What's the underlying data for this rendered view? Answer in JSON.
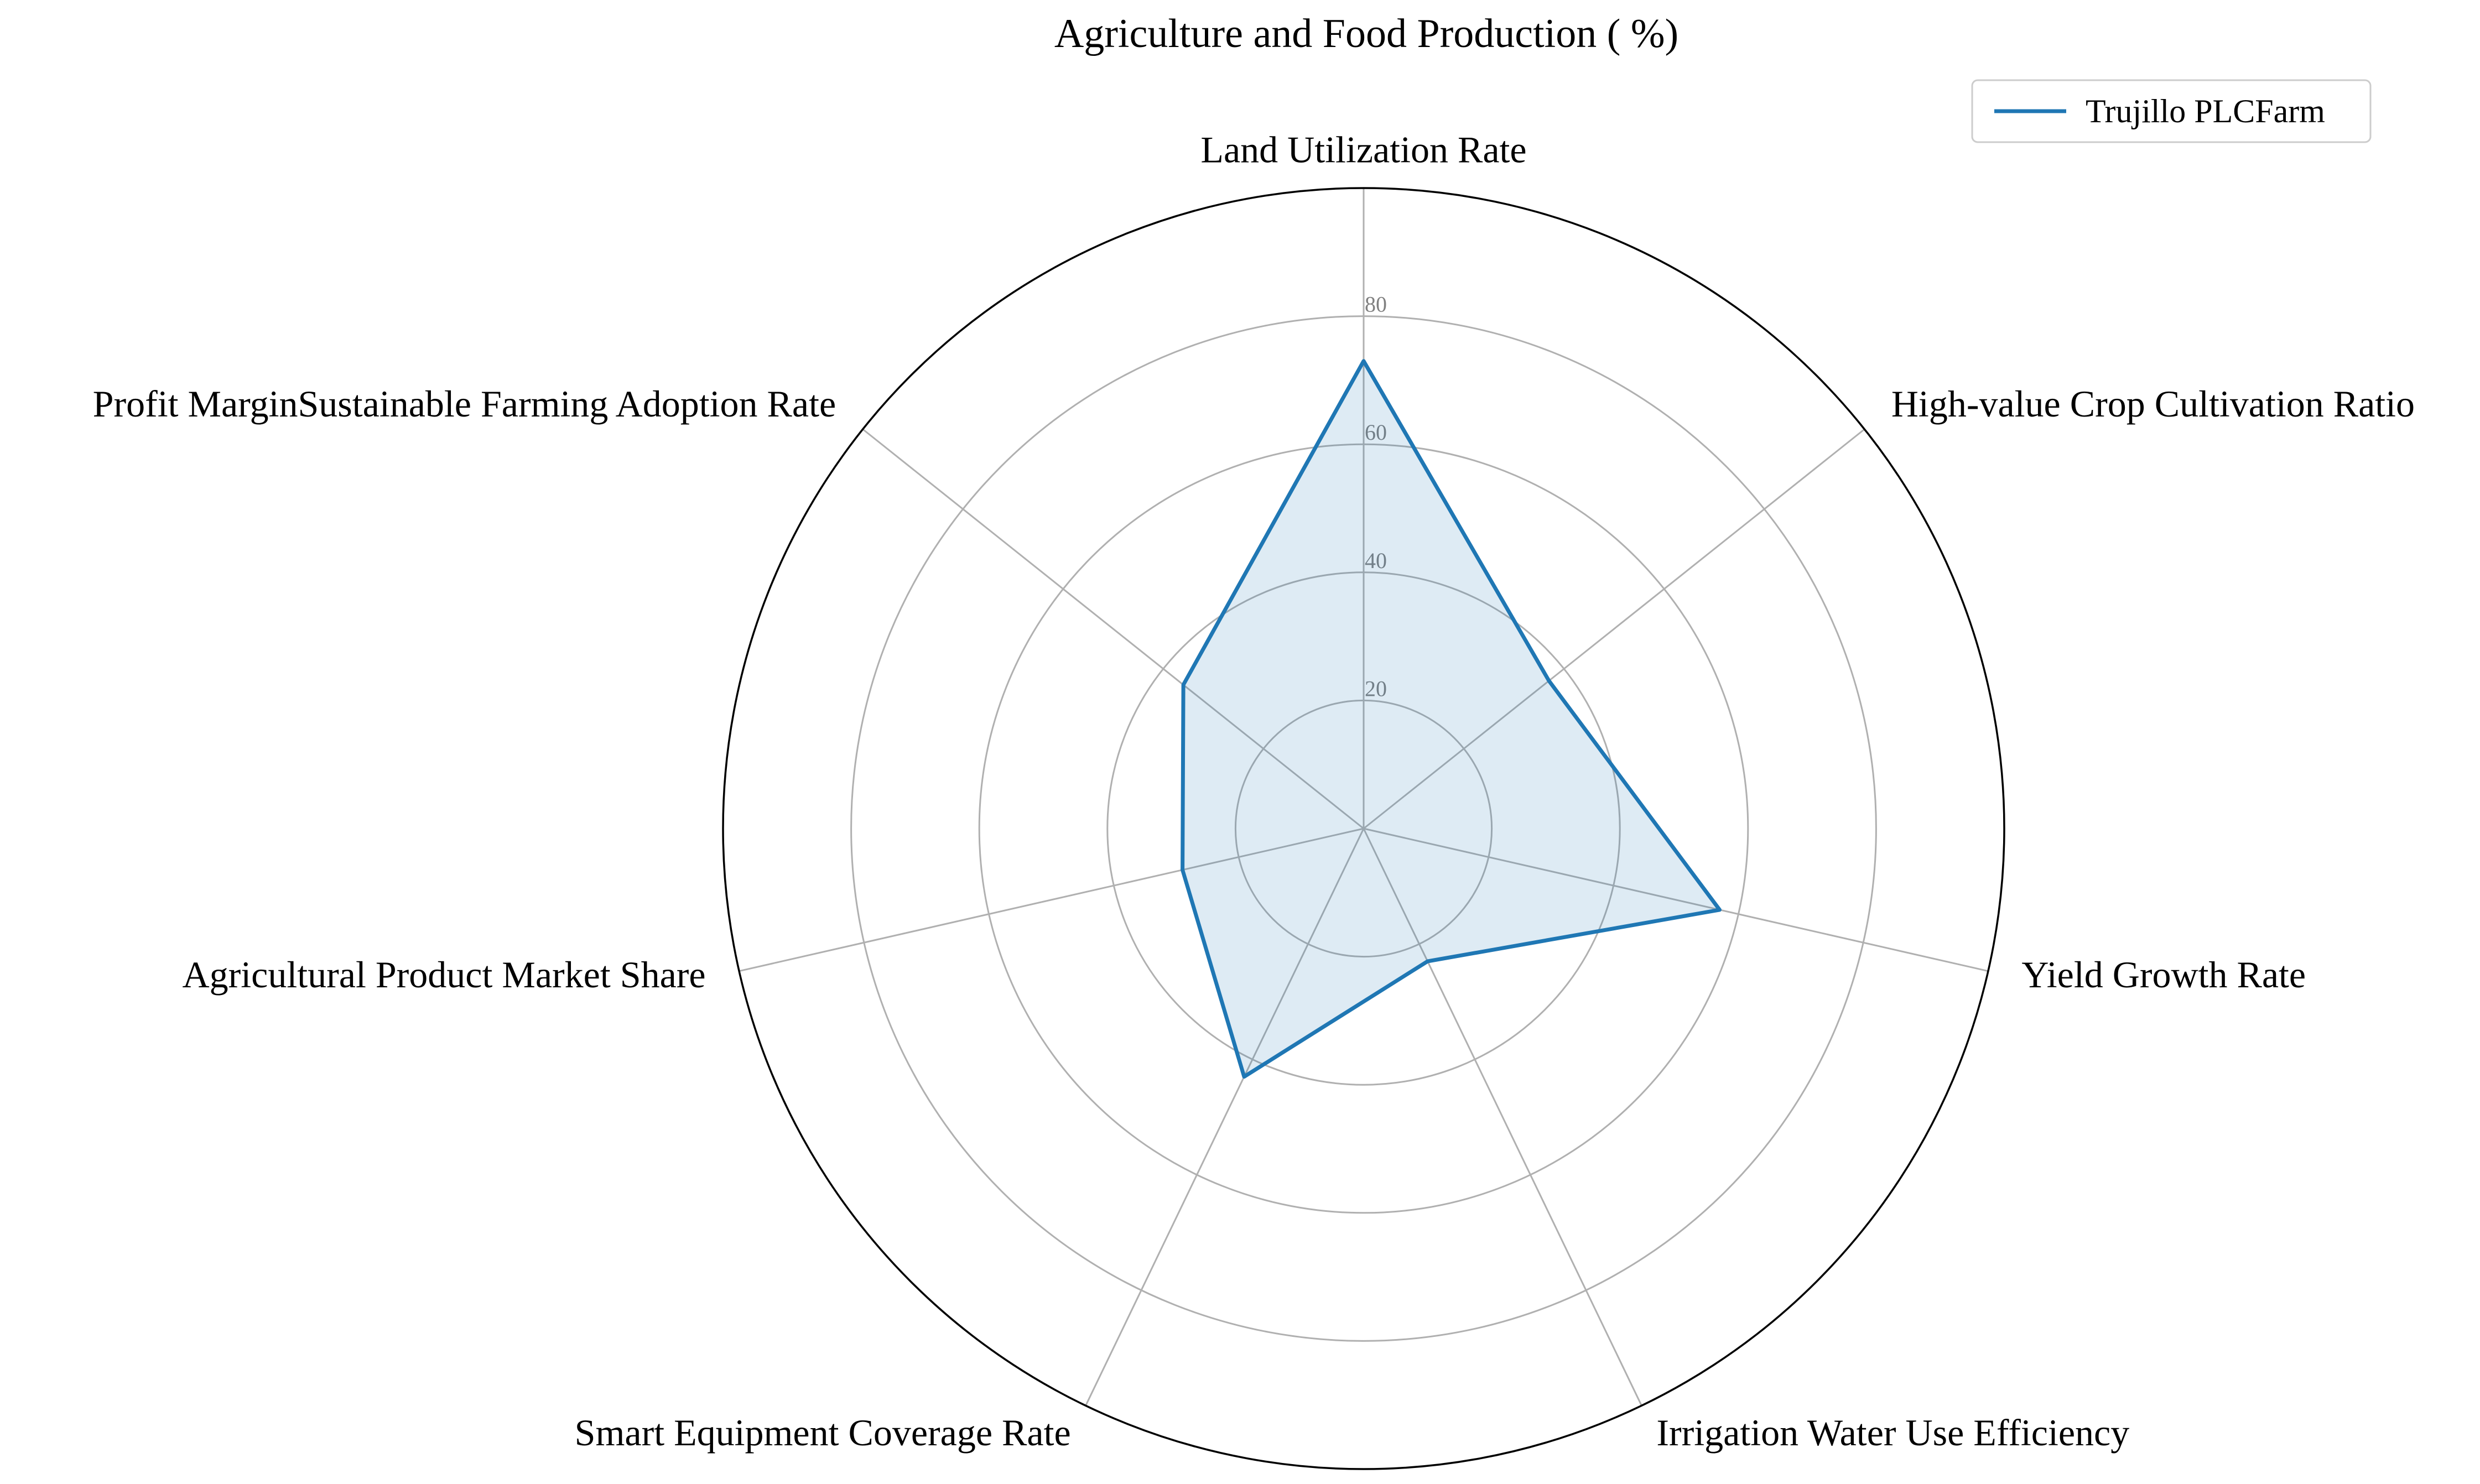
{
  "chart_data": {
    "type": "radar",
    "title": "Agriculture and Food Production ( %)",
    "axes": [
      "Land Utilization Rate",
      "High-value Crop Cultivation Ratio",
      "Yield Growth Rate",
      "Irrigation Water Use Efficiency",
      "Smart Equipment Coverage Rate",
      "Agricultural Product Market Share",
      "Profit MarginSustainable Farming Adoption Rate"
    ],
    "series": [
      {
        "name": "Trujillo PLCFarm",
        "values": [
          73,
          37,
          57,
          23,
          43,
          29,
          36
        ],
        "color": "#1f77b4",
        "fill_color": "#1f77b4",
        "fill_opacity": 0.15
      }
    ],
    "rlim": [
      0,
      100
    ],
    "r_ticks": [
      20,
      40,
      60,
      80
    ],
    "grid": true,
    "legend_position": "top-right"
  }
}
